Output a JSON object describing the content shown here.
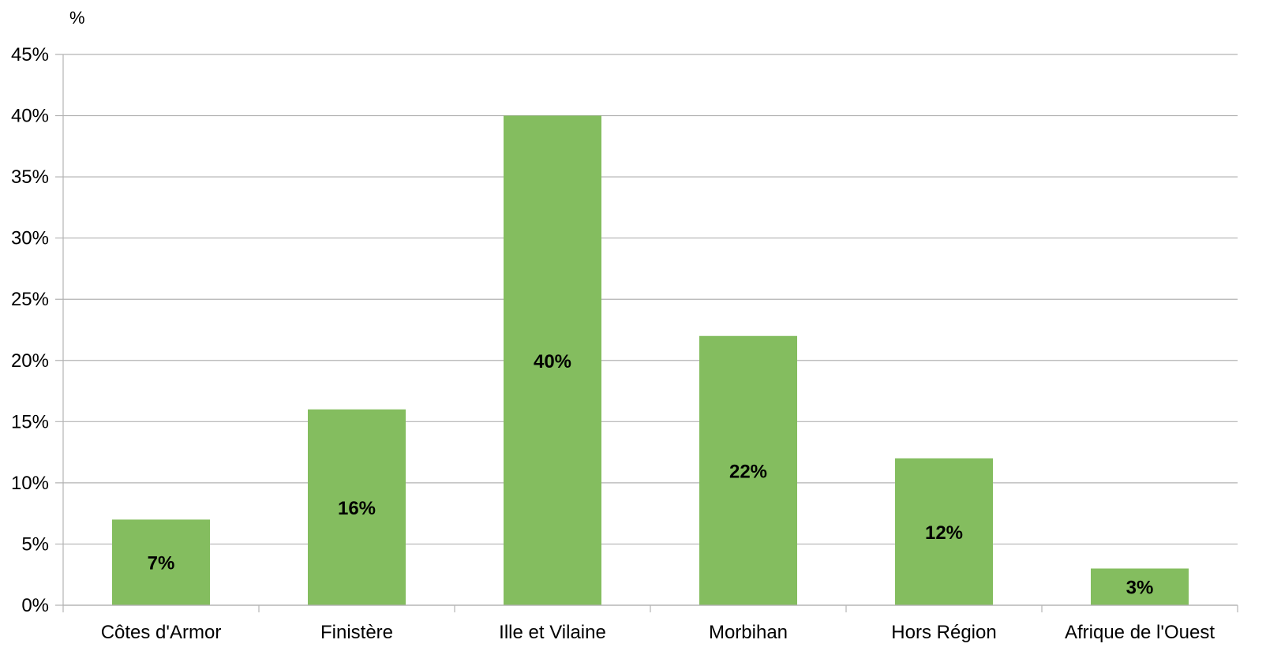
{
  "chart_data": {
    "type": "bar",
    "title": "",
    "ylabel": "%",
    "xlabel": "",
    "categories": [
      "Côtes d'Armor",
      "Finistère",
      "Ille et Vilaine",
      "Morbihan",
      "Hors Région",
      "Afrique de l'Ouest"
    ],
    "values": [
      7,
      16,
      40,
      22,
      12,
      3
    ],
    "data_labels": [
      "7%",
      "16%",
      "40%",
      "22%",
      "12%",
      "3%"
    ],
    "ylim": [
      0,
      45
    ],
    "ytick_step": 5,
    "ytick_labels": [
      "0%",
      "5%",
      "10%",
      "15%",
      "20%",
      "25%",
      "30%",
      "35%",
      "40%",
      "45%"
    ],
    "grid": true,
    "legend": "none",
    "colors": {
      "bar": "#84bd5f",
      "grid": "#b3b3b3",
      "axis": "#b3b3b3"
    }
  }
}
